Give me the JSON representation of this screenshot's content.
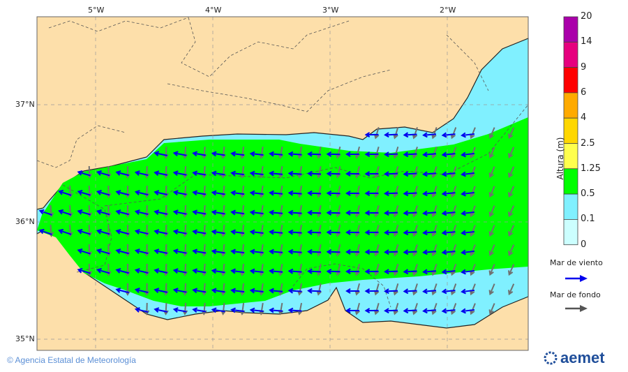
{
  "map": {
    "lon_labels": [
      "5°W",
      "4°W",
      "3°W",
      "2°W"
    ],
    "lat_labels": [
      "37°N",
      "36°N",
      "35°N"
    ],
    "colors": {
      "land": "#fddfaa",
      "sea_low": "#80f0ff",
      "sea_mid": "#00ff00",
      "wind_sea_arrow": "#0000ee",
      "swell_arrow": "#707070"
    },
    "wind_sea_direction": "W",
    "swell_direction": "SW"
  },
  "colorbar": {
    "title": "Altura (m)",
    "ticks": [
      "20",
      "14",
      "9",
      "6",
      "4",
      "2.5",
      "1.25",
      "0.5",
      "0.1",
      "0"
    ],
    "colors": [
      "#aa00aa",
      "#e6007e",
      "#ff0000",
      "#ffaa00",
      "#ffd700",
      "#ffff4d",
      "#00ff00",
      "#80f0ff",
      "#ccffff"
    ]
  },
  "legend": {
    "wind_sea_label": "Mar de viento",
    "swell_label": "Mar de fondo"
  },
  "footer": {
    "credit": "Agencia Estatal de Meteorología",
    "logo_text": "aemet"
  }
}
